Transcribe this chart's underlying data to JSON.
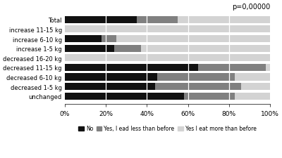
{
  "categories": [
    "Total",
    "increase 11-15 kg",
    "increase 6-10 kg",
    "increase 1-5 kg",
    "decreased 16-20 kg",
    "decreased 11-15 kg",
    "decreased 6-10 kg",
    "decreased 1-5 kg",
    "unchanged"
  ],
  "no": [
    35,
    0,
    18,
    24,
    0,
    65,
    45,
    44,
    58
  ],
  "yes_less": [
    20,
    0,
    7,
    13,
    0,
    33,
    38,
    42,
    25
  ],
  "yes_more": [
    45,
    100,
    75,
    63,
    100,
    2,
    17,
    14,
    17
  ],
  "colors": {
    "no": "#111111",
    "yes_less": "#808080",
    "yes_more": "#d3d3d3"
  },
  "legend_labels": [
    "No",
    "Yes, I ead less than before",
    "Yes I eat more than before"
  ],
  "pvalue": "p=0,00000",
  "xlim": [
    0,
    100
  ],
  "xtick_labels": [
    "0%",
    "20%",
    "40%",
    "60%",
    "80%",
    "100%"
  ]
}
